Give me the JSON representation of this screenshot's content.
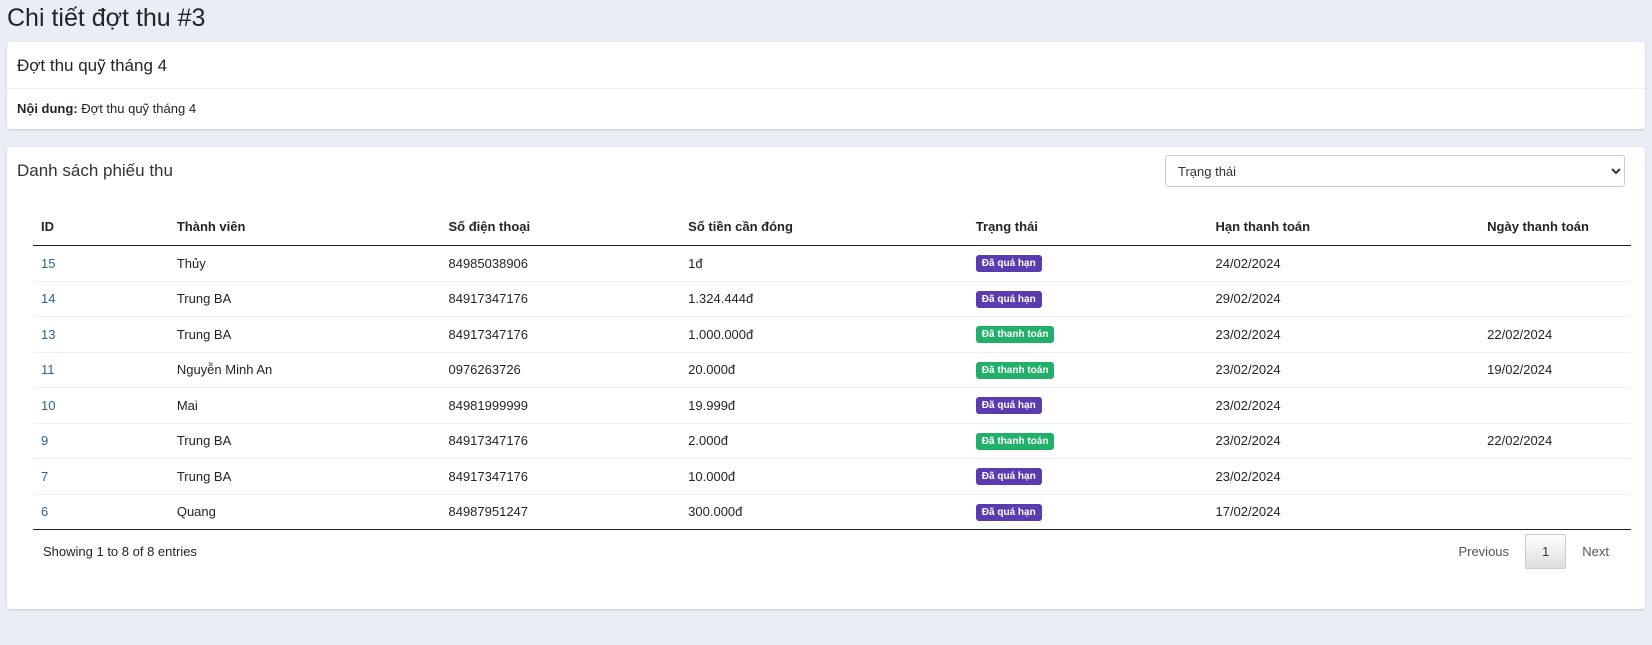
{
  "page_title": "Chi tiết đợt thu #3",
  "info": {
    "title": "Đợt thu quỹ tháng 4",
    "content_label": "Nội dung:",
    "content_value": "Đợt thu quỹ tháng 4"
  },
  "list": {
    "title": "Danh sách phiếu thu",
    "status_filter": "Trạng thái",
    "columns": [
      "ID",
      "Thành viên",
      "Số điện thoại",
      "Số tiền cần đóng",
      "Trạng thái",
      "Hạn thanh toán",
      "Ngày thanh toán"
    ],
    "rows": [
      {
        "id": "15",
        "member": "Thủy",
        "phone": "84985038906",
        "amount": "1đ",
        "status": "Đã quá hạn",
        "due": "24/02/2024",
        "paid": ""
      },
      {
        "id": "14",
        "member": "Trung BA",
        "phone": "84917347176",
        "amount": "1.324.444đ",
        "status": "Đã quá hạn",
        "due": "29/02/2024",
        "paid": ""
      },
      {
        "id": "13",
        "member": "Trung BA",
        "phone": "84917347176",
        "amount": "1.000.000đ",
        "status": "Đã thanh toán",
        "due": "23/02/2024",
        "paid": "22/02/2024"
      },
      {
        "id": "11",
        "member": "Nguyễn Minh An",
        "phone": "0976263726",
        "amount": "20.000đ",
        "status": "Đã thanh toán",
        "due": "23/02/2024",
        "paid": "19/02/2024"
      },
      {
        "id": "10",
        "member": "Mai",
        "phone": "84981999999",
        "amount": "19.999đ",
        "status": "Đã quá hạn",
        "due": "23/02/2024",
        "paid": ""
      },
      {
        "id": "9",
        "member": "Trung BA",
        "phone": "84917347176",
        "amount": "2.000đ",
        "status": "Đã thanh toán",
        "due": "23/02/2024",
        "paid": "22/02/2024"
      },
      {
        "id": "7",
        "member": "Trung BA",
        "phone": "84917347176",
        "amount": "10.000đ",
        "status": "Đã quá hạn",
        "due": "23/02/2024",
        "paid": ""
      },
      {
        "id": "6",
        "member": "Quang",
        "phone": "84987951247",
        "amount": "300.000đ",
        "status": "Đã quá hạn",
        "due": "17/02/2024",
        "paid": ""
      }
    ],
    "info_text": "Showing 1 to 8 of 8 entries",
    "pagination": {
      "previous": "Previous",
      "current": "1",
      "next": "Next"
    }
  },
  "colors": {
    "overdue": "#5b3cb0",
    "paid": "#21b06a",
    "link": "#2a6496"
  }
}
